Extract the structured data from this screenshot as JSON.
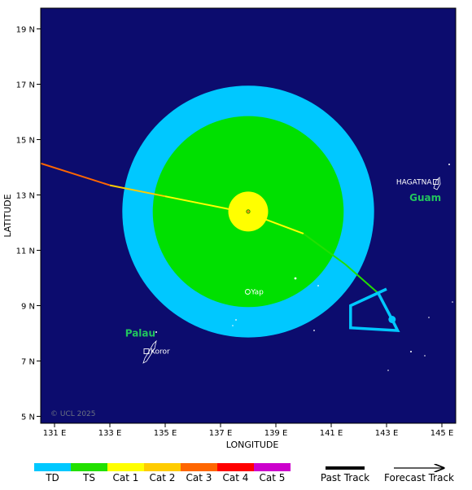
{
  "map": {
    "xlabel": "LONGITUDE",
    "ylabel": "LATITUDE",
    "lon_ticks": [
      "131 E",
      "133 E",
      "135 E",
      "137 E",
      "139 E",
      "141 E",
      "143 E",
      "145 E"
    ],
    "lat_ticks": [
      "19 N",
      "17 N",
      "15 N",
      "13 N",
      "11 N",
      "9 N",
      "7 N",
      "5 N"
    ],
    "copyright": "© UCL 2025",
    "ocean_color": "#0c0c6e"
  },
  "places": [
    {
      "name": "HAGATNA",
      "lon": 144.75,
      "lat": 13.47
    },
    {
      "name": "Yap",
      "lon": 138.1,
      "lat": 9.5
    },
    {
      "name": "Koror",
      "lon": 134.5,
      "lat": 7.35
    }
  ],
  "regions": [
    {
      "name": "Guam",
      "lon": 144.4,
      "lat": 12.9
    },
    {
      "name": "Palau",
      "lon": 134.1,
      "lat": 8.0
    }
  ],
  "storm": {
    "center_lon": 138.0,
    "center_lat": 12.4,
    "wind_radii": [
      {
        "category": "TD",
        "radius_deg": 4.55,
        "color": "#00c8ff"
      },
      {
        "category": "TS",
        "radius_deg": 3.45,
        "color": "#00e000"
      },
      {
        "category": "Cat 1",
        "radius_deg": 0.72,
        "color": "#ffff00"
      }
    ],
    "past_track": [
      {
        "lon": 130.0,
        "lat": 14.3,
        "category": "Cat 3"
      },
      {
        "lon": 133.0,
        "lat": 13.35,
        "category": "Cat 2"
      },
      {
        "lon": 135.0,
        "lat": 12.95,
        "category": "Cat 1"
      },
      {
        "lon": 138.0,
        "lat": 12.35,
        "category": "Cat 1"
      },
      {
        "lon": 140.0,
        "lat": 11.6,
        "category": "TS"
      },
      {
        "lon": 141.5,
        "lat": 10.5,
        "category": "TS"
      },
      {
        "lon": 142.7,
        "lat": 9.45,
        "category": "TD"
      }
    ],
    "forecast_track": [
      {
        "lon": 142.7,
        "lat": 9.45
      },
      {
        "lon": 143.2,
        "lat": 8.5
      },
      {
        "lon": 143.4,
        "lat": 8.1
      },
      {
        "lon": 141.7,
        "lat": 8.2
      },
      {
        "lon": 141.7,
        "lat": 9.0
      },
      {
        "lon": 143.0,
        "lat": 9.6
      }
    ],
    "forecast_points": [
      {
        "lon": 143.2,
        "lat": 8.5
      }
    ]
  },
  "legend": {
    "categories": [
      {
        "label": "TD",
        "color": "#00c8ff"
      },
      {
        "label": "TS",
        "color": "#22e000"
      },
      {
        "label": "Cat 1",
        "color": "#ffff00"
      },
      {
        "label": "Cat 2",
        "color": "#ffcc00"
      },
      {
        "label": "Cat 3",
        "color": "#ff6600"
      },
      {
        "label": "Cat 4",
        "color": "#ff0000"
      },
      {
        "label": "Cat 5",
        "color": "#cc00cc"
      }
    ],
    "past_track_label": "Past Track",
    "forecast_track_label": "Forecast Track"
  }
}
